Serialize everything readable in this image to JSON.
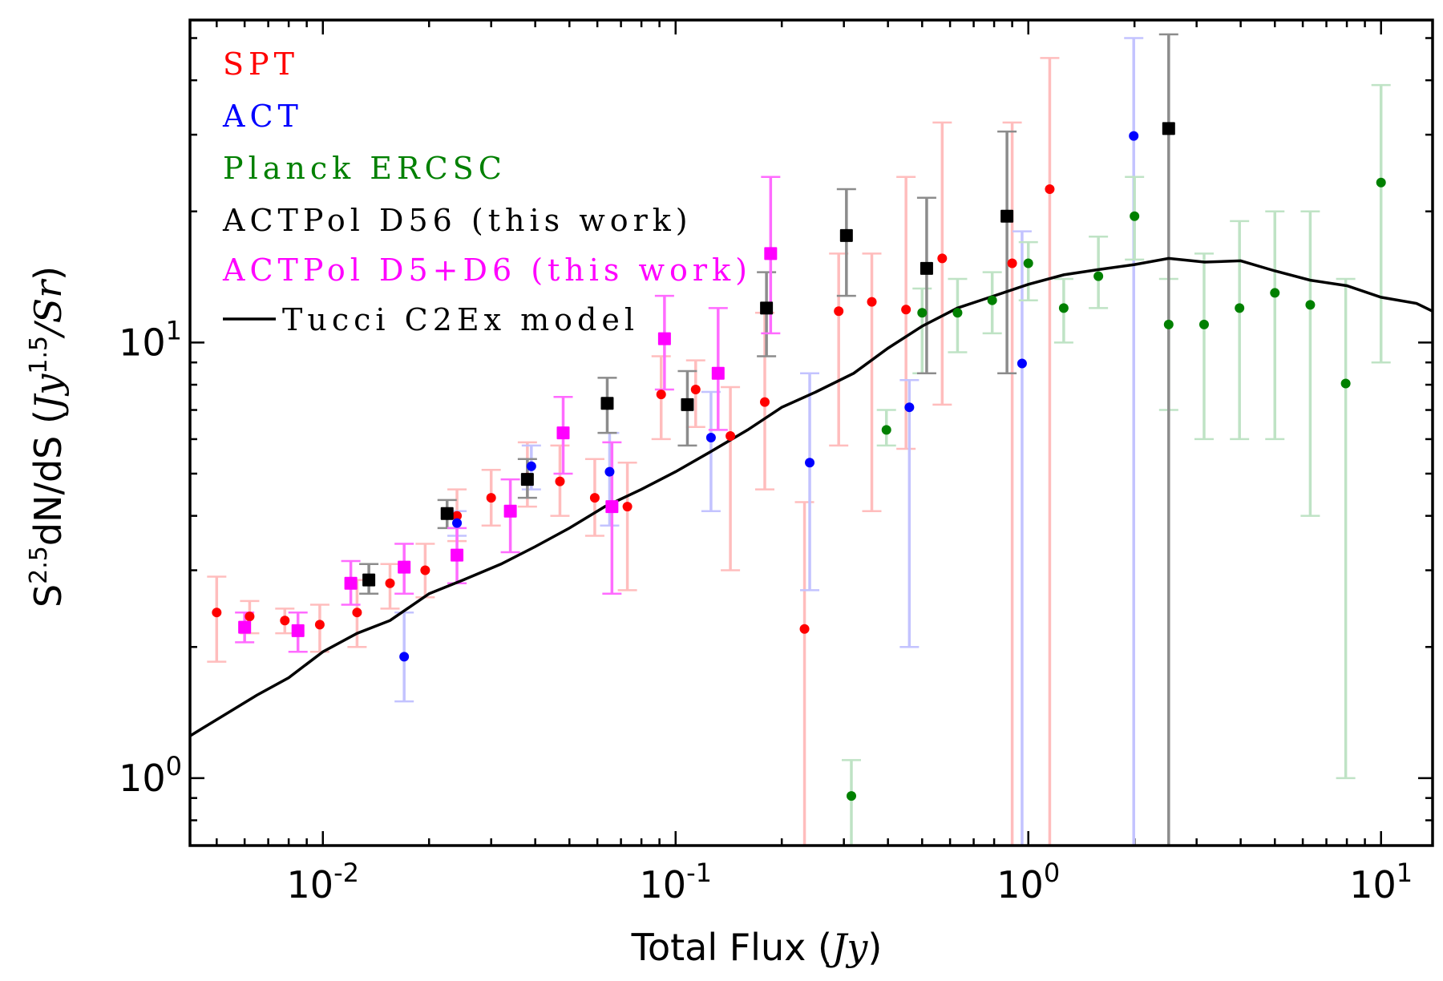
{
  "chart_data": {
    "type": "scatter",
    "xscale": "log",
    "yscale": "log",
    "xlim": [
      0.0042,
      14.0
    ],
    "ylim": [
      0.7,
      55.0
    ],
    "xlabel": "Total Flux (",
    "xlabel_unit": "Jy",
    "xlabel_close": ")",
    "ylabel": "S",
    "ylabel_exp": "2.5",
    "ylabel_rest": "dN/dS (",
    "ylabel_unit": "Jy",
    "ylabel_unit_exp": "1.5",
    "ylabel_unit_rest": "/Sr",
    "ylabel_close": ")",
    "xticks": [
      {
        "value": 0.01,
        "base": "10",
        "exp": "-2"
      },
      {
        "value": 0.1,
        "base": "10",
        "exp": "-1"
      },
      {
        "value": 1,
        "base": "10",
        "exp": "0"
      },
      {
        "value": 10,
        "base": "10",
        "exp": "1"
      }
    ],
    "yticks": [
      {
        "value": 1,
        "base": "10",
        "exp": "0"
      },
      {
        "value": 10,
        "base": "10",
        "exp": "1"
      }
    ],
    "legend_position": "top-left",
    "series": [
      {
        "name": "SPT",
        "color": "#ff0000",
        "errcolor": "#ffbdbd",
        "marker": "circle",
        "points": [
          {
            "x": 0.005,
            "y": 2.4,
            "lo": 1.85,
            "hi": 2.9
          },
          {
            "x": 0.0062,
            "y": 2.35,
            "lo": 2.15,
            "hi": 2.55
          },
          {
            "x": 0.0078,
            "y": 2.3,
            "lo": 2.15,
            "hi": 2.45
          },
          {
            "x": 0.0098,
            "y": 2.25,
            "lo": 1.95,
            "hi": 2.5
          },
          {
            "x": 0.0125,
            "y": 2.4,
            "lo": 2.0,
            "hi": 2.85
          },
          {
            "x": 0.0155,
            "y": 2.8,
            "lo": 2.45,
            "hi": 3.1
          },
          {
            "x": 0.0195,
            "y": 3.0,
            "lo": 2.6,
            "hi": 3.45
          },
          {
            "x": 0.024,
            "y": 4.0,
            "lo": 3.5,
            "hi": 4.6
          },
          {
            "x": 0.03,
            "y": 4.4,
            "lo": 3.8,
            "hi": 5.1
          },
          {
            "x": 0.038,
            "y": 4.9,
            "lo": 4.2,
            "hi": 5.9
          },
          {
            "x": 0.047,
            "y": 4.8,
            "lo": 4.0,
            "hi": 5.8
          },
          {
            "x": 0.059,
            "y": 4.4,
            "lo": 3.6,
            "hi": 5.4
          },
          {
            "x": 0.073,
            "y": 4.2,
            "lo": 2.7,
            "hi": 5.3
          },
          {
            "x": 0.091,
            "y": 7.6,
            "lo": 6.0,
            "hi": 9.3
          },
          {
            "x": 0.114,
            "y": 7.8,
            "lo": 6.4,
            "hi": 9.1
          },
          {
            "x": 0.143,
            "y": 6.1,
            "lo": 3.0,
            "hi": 7.9
          },
          {
            "x": 0.179,
            "y": 7.3,
            "lo": 4.6,
            "hi": 11.7
          },
          {
            "x": 0.232,
            "y": 2.2,
            "lo": 0.7,
            "hi": 4.3
          },
          {
            "x": 0.29,
            "y": 11.8,
            "lo": 5.8,
            "hi": 16.0
          },
          {
            "x": 0.36,
            "y": 12.4,
            "lo": 4.1,
            "hi": 16.0
          },
          {
            "x": 0.45,
            "y": 11.9,
            "lo": 5.7,
            "hi": 24.0
          },
          {
            "x": 0.57,
            "y": 15.6,
            "lo": 7.2,
            "hi": 32.0
          },
          {
            "x": 0.9,
            "y": 15.2,
            "lo": 0.7,
            "hi": 32.0
          },
          {
            "x": 1.15,
            "y": 22.5,
            "lo": 0.7,
            "hi": 45.0
          }
        ]
      },
      {
        "name": "ACT",
        "color": "#0000ff",
        "errcolor": "#c3c3ff",
        "marker": "circle",
        "points": [
          {
            "x": 0.017,
            "y": 1.9,
            "lo": 1.5,
            "hi": 2.4
          },
          {
            "x": 0.024,
            "y": 3.85,
            "lo": 3.6,
            "hi": 4.1
          },
          {
            "x": 0.039,
            "y": 5.2,
            "lo": 4.6,
            "hi": 5.8
          },
          {
            "x": 0.065,
            "y": 5.05,
            "lo": 3.8,
            "hi": 6.2
          },
          {
            "x": 0.126,
            "y": 6.05,
            "lo": 4.1,
            "hi": 7.7
          },
          {
            "x": 0.24,
            "y": 5.3,
            "lo": 2.7,
            "hi": 8.5
          },
          {
            "x": 0.46,
            "y": 7.1,
            "lo": 2.0,
            "hi": 8.2
          },
          {
            "x": 0.96,
            "y": 8.95,
            "lo": 0.7,
            "hi": 18.0
          },
          {
            "x": 1.99,
            "y": 29.8,
            "lo": 0.7,
            "hi": 50.0
          }
        ]
      },
      {
        "name": "Planck ERCSC",
        "color": "#008000",
        "errcolor": "#bfe3c5",
        "marker": "circle",
        "points": [
          {
            "x": 0.315,
            "y": 0.91,
            "lo": 0.7,
            "hi": 1.1
          },
          {
            "x": 0.396,
            "y": 6.3,
            "lo": 5.8,
            "hi": 7.0
          },
          {
            "x": 0.5,
            "y": 11.7,
            "lo": 8.5,
            "hi": 13.3
          },
          {
            "x": 0.63,
            "y": 11.7,
            "lo": 9.5,
            "hi": 14.0
          },
          {
            "x": 0.79,
            "y": 12.5,
            "lo": 10.5,
            "hi": 14.5
          },
          {
            "x": 1.0,
            "y": 15.2,
            "lo": 12.5,
            "hi": 17.0
          },
          {
            "x": 1.26,
            "y": 12.0,
            "lo": 10.0,
            "hi": 14.0
          },
          {
            "x": 1.58,
            "y": 14.2,
            "lo": 12.0,
            "hi": 17.5
          },
          {
            "x": 2.0,
            "y": 19.5,
            "lo": 15.5,
            "hi": 24.0
          },
          {
            "x": 2.5,
            "y": 11.0,
            "lo": 7.0,
            "hi": 14.0
          },
          {
            "x": 3.15,
            "y": 11.0,
            "lo": 6.0,
            "hi": 16.0
          },
          {
            "x": 3.97,
            "y": 12.0,
            "lo": 6.0,
            "hi": 19.0
          },
          {
            "x": 5.0,
            "y": 13.0,
            "lo": 6.0,
            "hi": 20.0
          },
          {
            "x": 6.3,
            "y": 12.2,
            "lo": 4.0,
            "hi": 20.0
          },
          {
            "x": 7.94,
            "y": 8.05,
            "lo": 1.0,
            "hi": 14.0
          },
          {
            "x": 10.0,
            "y": 23.3,
            "lo": 9.0,
            "hi": 39.0
          }
        ]
      },
      {
        "name": "ACTPol D56 (this work)",
        "color": "#000000",
        "errcolor": "#8c8c8c",
        "marker": "square",
        "points": [
          {
            "x": 0.0135,
            "y": 2.85,
            "lo": 2.65,
            "hi": 3.1
          },
          {
            "x": 0.0225,
            "y": 4.05,
            "lo": 3.75,
            "hi": 4.35
          },
          {
            "x": 0.038,
            "y": 4.85,
            "lo": 4.4,
            "hi": 5.4
          },
          {
            "x": 0.064,
            "y": 7.25,
            "lo": 6.2,
            "hi": 8.3
          },
          {
            "x": 0.108,
            "y": 7.2,
            "lo": 5.8,
            "hi": 8.6
          },
          {
            "x": 0.181,
            "y": 12.0,
            "lo": 9.3,
            "hi": 14.5
          },
          {
            "x": 0.305,
            "y": 17.6,
            "lo": 12.8,
            "hi": 22.5
          },
          {
            "x": 0.515,
            "y": 14.8,
            "lo": 8.5,
            "hi": 21.5
          },
          {
            "x": 0.87,
            "y": 19.5,
            "lo": 8.5,
            "hi": 30.5
          },
          {
            "x": 2.5,
            "y": 31.0,
            "lo": 0.7,
            "hi": 51.0
          }
        ]
      },
      {
        "name": "ACTPol D5+D6 (this work)",
        "color": "#ff00ff",
        "errcolor": "#ff6bff",
        "marker": "square",
        "points": [
          {
            "x": 0.006,
            "y": 2.22,
            "lo": 2.05,
            "hi": 2.4
          },
          {
            "x": 0.0085,
            "y": 2.18,
            "lo": 1.95,
            "hi": 2.4
          },
          {
            "x": 0.012,
            "y": 2.8,
            "lo": 2.5,
            "hi": 3.15
          },
          {
            "x": 0.017,
            "y": 3.05,
            "lo": 2.65,
            "hi": 3.45
          },
          {
            "x": 0.024,
            "y": 3.25,
            "lo": 2.8,
            "hi": 3.75
          },
          {
            "x": 0.034,
            "y": 4.1,
            "lo": 3.3,
            "hi": 4.85
          },
          {
            "x": 0.048,
            "y": 6.2,
            "lo": 5.0,
            "hi": 7.5
          },
          {
            "x": 0.066,
            "y": 4.2,
            "lo": 2.65,
            "hi": 5.9
          },
          {
            "x": 0.093,
            "y": 10.2,
            "lo": 7.8,
            "hi": 12.8
          },
          {
            "x": 0.132,
            "y": 8.5,
            "lo": 6.3,
            "hi": 12.0
          },
          {
            "x": 0.186,
            "y": 16.0,
            "lo": 10.5,
            "hi": 24.0
          }
        ]
      }
    ],
    "model": {
      "name": "Tucci C2Ex model",
      "color": "#000000",
      "x": [
        0.0042,
        0.0065,
        0.008,
        0.01,
        0.0125,
        0.0155,
        0.02,
        0.025,
        0.032,
        0.04,
        0.05,
        0.063,
        0.08,
        0.1,
        0.125,
        0.16,
        0.2,
        0.25,
        0.32,
        0.4,
        0.5,
        0.63,
        0.8,
        1.0,
        1.26,
        1.58,
        2.0,
        2.5,
        3.16,
        4.0,
        5.0,
        6.3,
        8.0,
        10.0,
        12.6,
        14.0
      ],
      "y": [
        1.25,
        1.55,
        1.7,
        1.95,
        2.15,
        2.3,
        2.65,
        2.85,
        3.1,
        3.4,
        3.75,
        4.2,
        4.6,
        5.05,
        5.6,
        6.3,
        7.1,
        7.7,
        8.5,
        9.7,
        10.9,
        12.0,
        12.8,
        13.6,
        14.3,
        14.7,
        15.1,
        15.6,
        15.3,
        15.4,
        14.6,
        13.9,
        13.5,
        12.7,
        12.3,
        11.8
      ]
    }
  }
}
